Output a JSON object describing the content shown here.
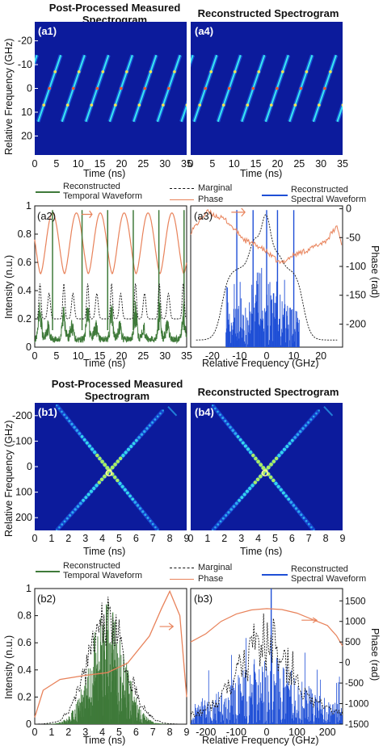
{
  "figure_a": {
    "title_left": "Post-Processed Measured Spectrogram",
    "title_right": "Reconstructed Spectrogram",
    "tag_a1": "(a1)",
    "tag_a4": "(a4)",
    "tag_a2": "(a2)",
    "tag_a3": "(a3)",
    "spec_ylabel": "Relative Frequency (GHz)",
    "time_xlabel": "Time (ns)",
    "freq_xlabel": "Relative Frequency (GHz)",
    "intensity_ylabel": "Intensity (n.u.)",
    "phase_ylabel": "Phase (rad)",
    "legend": {
      "recon_temporal": [
        "Reconstructed",
        "Temporal Waveform"
      ],
      "marginal": "Marginal",
      "phase": "Phase",
      "recon_spectral": [
        "Reconstructed",
        "Spectral Waveform"
      ]
    }
  },
  "figure_b": {
    "title_left": "Post-Processed Measured Spectrogram",
    "title_right": "Reconstructed Spectrogram",
    "tag_b1": "(b1)",
    "tag_b4": "(b4)",
    "tag_b2": "(b2)",
    "tag_b3": "(b3)",
    "spec_ylabel": "Relative Frequency (GHz)",
    "time_xlabel": "Time (ns)",
    "freq_xlabel": "Relative Frequency (GHz)",
    "intensity_ylabel": "Intensity (n.u.)",
    "phase_ylabel": "Phase (rad)",
    "legend": {
      "recon_temporal": [
        "Reconstructed",
        "Temporal Waveform"
      ],
      "marginal": "Marginal",
      "phase": "Phase",
      "recon_spectral": [
        "Reconstructed",
        "Spectral Waveform"
      ]
    }
  },
  "colors": {
    "spectrogram_bg": "#0c1b9c",
    "temporal_waveform": "#3f7a3a",
    "marginal": "#111111",
    "phase": "#e8825a",
    "spectral_waveform": "#1f4fd6"
  },
  "chart_data": [
    {
      "id": "a1",
      "type": "heatmap",
      "title": "Post-Processed Measured Spectrogram",
      "xlabel": "Time (ns)",
      "ylabel": "Relative Frequency (GHz)",
      "xlim": [
        0,
        35
      ],
      "ylim": [
        -28,
        28
      ],
      "y_inverted": true,
      "xticks": [
        0,
        5,
        10,
        15,
        20,
        25,
        30,
        35
      ],
      "yticks": [
        -20,
        -10,
        0,
        10,
        20
      ],
      "pattern": "sawtooth",
      "period_ns": 5.5,
      "phase_ns": 0.5,
      "freq_range_ghz": [
        -14,
        14
      ]
    },
    {
      "id": "a4",
      "type": "heatmap",
      "title": "Reconstructed Spectrogram",
      "xlabel": "Time (ns)",
      "xlim": [
        0,
        35
      ],
      "ylim": [
        -28,
        28
      ],
      "y_inverted": true,
      "xticks": [
        0,
        5,
        10,
        15,
        20,
        25,
        30,
        35
      ],
      "pattern": "sawtooth",
      "period_ns": 5.5,
      "phase_ns": 0.5,
      "freq_range_ghz": [
        -14,
        14
      ]
    },
    {
      "id": "a2",
      "type": "line",
      "xlabel": "Time (ns)",
      "ylabel": "Intensity (n.u.)",
      "xlim": [
        0,
        35
      ],
      "ylim": [
        0,
        1
      ],
      "xticks": [
        0,
        5,
        10,
        15,
        20,
        25,
        30,
        35
      ],
      "yticks": [
        0,
        0.2,
        0.4,
        0.6,
        0.8,
        1
      ],
      "series": [
        {
          "name": "Reconstructed Temporal Waveform",
          "pattern": "periodic",
          "period_ns": 5.5,
          "peaks_at_ns": [
            4.1,
            10.9,
            16.8,
            22.7,
            28.6,
            34.4
          ],
          "peak_value": 0.98,
          "baseline": 0.12
        },
        {
          "name": "Marginal",
          "pattern": "periodic",
          "period_ns": 5.5,
          "peak_value": 0.88,
          "baseline": 0.2
        },
        {
          "name": "Phase",
          "pattern": "periodic",
          "period_ns": 5.5,
          "max_level": 0.95,
          "min_level": 0.52
        }
      ]
    },
    {
      "id": "a3",
      "type": "line",
      "xlabel": "Relative Frequency (GHz)",
      "ylabel": "Phase (rad)",
      "xlim": [
        -28,
        28
      ],
      "ylim_phase": [
        -240,
        5
      ],
      "xticks": [
        -20,
        -10,
        0,
        10,
        20
      ],
      "yticks_phase": [
        0,
        -50,
        -100,
        -150,
        -200
      ],
      "series": [
        {
          "name": "Reconstructed Spectral Waveform",
          "support_ghz": [
            -15,
            12
          ],
          "peaks_at_ghz": [
            -11,
            -5,
            0,
            4,
            10
          ],
          "peak_value": 0.98
        },
        {
          "name": "Marginal",
          "support_ghz": [
            -20,
            17
          ],
          "peak_value": 0.97
        },
        {
          "name": "Phase",
          "x": [
            -28,
            -22,
            -15,
            -8,
            -3,
            0,
            5,
            10,
            16,
            22,
            26,
            28
          ],
          "y": [
            -40,
            -5,
            -20,
            -55,
            -65,
            -75,
            -95,
            -80,
            -70,
            -55,
            -30,
            -70
          ]
        }
      ]
    },
    {
      "id": "b1",
      "type": "heatmap",
      "title": "Post-Processed Measured Spectrogram",
      "xlabel": "Time (ns)",
      "ylabel": "Relative Frequency (GHz)",
      "xlim": [
        0,
        9
      ],
      "ylim": [
        -250,
        250
      ],
      "y_inverted": true,
      "xticks": [
        0,
        1,
        2,
        3,
        4,
        5,
        6,
        7,
        8,
        9
      ],
      "yticks": [
        -200,
        -100,
        0,
        100,
        200
      ],
      "pattern": "x-shaped chirp",
      "crossing_ns": 4.4,
      "crossing_ghz": 25
    },
    {
      "id": "b4",
      "type": "heatmap",
      "title": "Reconstructed Spectrogram",
      "xlabel": "Time (ns)",
      "xlim": [
        0,
        9
      ],
      "ylim": [
        -250,
        250
      ],
      "y_inverted": true,
      "xticks": [
        0,
        1,
        2,
        3,
        4,
        5,
        6,
        7,
        8,
        9
      ],
      "pattern": "x-shaped chirp",
      "crossing_ns": 4.4,
      "crossing_ghz": 25
    },
    {
      "id": "b2",
      "type": "line",
      "xlabel": "Time (ns)",
      "ylabel": "Intensity (n.u.)",
      "xlim": [
        0,
        9
      ],
      "ylim": [
        0,
        1
      ],
      "xticks": [
        0,
        1,
        2,
        3,
        4,
        5,
        6,
        7,
        8,
        9
      ],
      "yticks": [
        0,
        0.2,
        0.4,
        0.6,
        0.8,
        1
      ],
      "series": [
        {
          "name": "Reconstructed Temporal Waveform",
          "center_ns": 4.3,
          "width_ns": 1.4,
          "peak_value": 0.9
        },
        {
          "name": "Marginal",
          "center_ns": 4.3,
          "width_ns": 1.6,
          "peak_value": 0.98
        },
        {
          "name": "Phase",
          "x": [
            0,
            0.5,
            1.5,
            3,
            4.3,
            5.5,
            6.8,
            7.5,
            8.0,
            8.6,
            9
          ],
          "y": [
            0.05,
            0.25,
            0.33,
            0.36,
            0.38,
            0.45,
            0.65,
            0.85,
            0.98,
            0.8,
            0.2
          ]
        }
      ]
    },
    {
      "id": "b3",
      "type": "line",
      "xlabel": "Relative Frequency (GHz)",
      "ylabel": "Phase (rad)",
      "xlim": [
        -250,
        250
      ],
      "ylim_phase": [
        -1500,
        1800
      ],
      "xticks": [
        -200,
        -100,
        0,
        100,
        200
      ],
      "yticks_phase": [
        1500,
        1000,
        500,
        0,
        -500,
        -1000,
        -1500
      ],
      "series": [
        {
          "name": "Reconstructed Spectral Waveform",
          "support_ghz": [
            -250,
            250
          ],
          "peak_at_ghz": 15,
          "peak_value": 1.0
        },
        {
          "name": "Marginal",
          "support_ghz": [
            -250,
            250
          ],
          "peak_value": 0.97
        },
        {
          "name": "Phase",
          "x": [
            -250,
            -200,
            -150,
            -100,
            -50,
            0,
            50,
            100,
            150,
            200,
            230,
            250
          ],
          "y": [
            500,
            700,
            1000,
            1180,
            1280,
            1310,
            1290,
            1200,
            1050,
            900,
            650,
            400
          ]
        }
      ]
    }
  ]
}
